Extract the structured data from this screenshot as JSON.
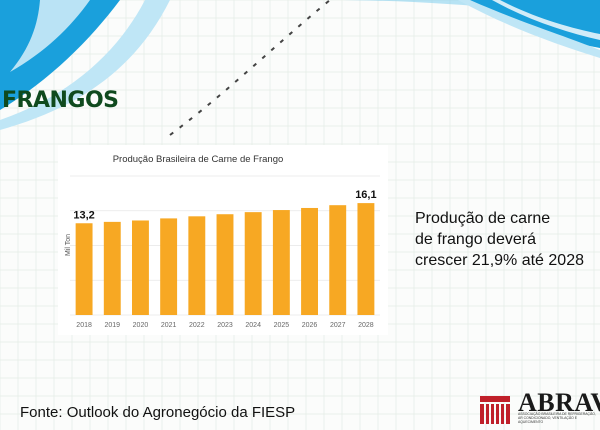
{
  "slide": {
    "title": "FRANGOS",
    "summary_lead": "Produção de carne",
    "summary_rest": "de frango deverá crescer 21,9% até 2028",
    "source": "Fonte: Outlook do Agronegócio da FIESP"
  },
  "logo": {
    "name": "ABRAVA",
    "subtitle": "ASSOCIAÇÃO BRASILEIRA DE REFRIGERAÇÃO, AR CONDICIONADO, VENTILAÇÃO E AQUECIMENTO",
    "icon": "abrava-building-icon"
  },
  "colors": {
    "bar": "#f7a823",
    "title": "#0f4a1e",
    "banner_blue": "#1aa0dc",
    "banner_light": "#bfe6f6",
    "grid": "#e3ece6"
  },
  "chart_data": {
    "type": "bar",
    "title": "Produção Brasileira de Carne de Frango",
    "ylabel": "Mil Ton",
    "xlabel": "",
    "categories": [
      "2018",
      "2019",
      "2020",
      "2021",
      "2022",
      "2023",
      "2024",
      "2025",
      "2026",
      "2027",
      "2028"
    ],
    "values": [
      13.2,
      13.4,
      13.6,
      13.9,
      14.2,
      14.5,
      14.8,
      15.1,
      15.4,
      15.8,
      16.1
    ],
    "ylim": [
      0,
      20000
    ],
    "y_ticks": [
      "0",
      "5.000",
      "10.000",
      "15.000",
      "20.000"
    ],
    "value_scale": 1000,
    "data_labels": [
      {
        "category": "2018",
        "text": "13,2"
      },
      {
        "category": "2028",
        "text": "16,1"
      }
    ],
    "grid": true,
    "legend": "none"
  }
}
